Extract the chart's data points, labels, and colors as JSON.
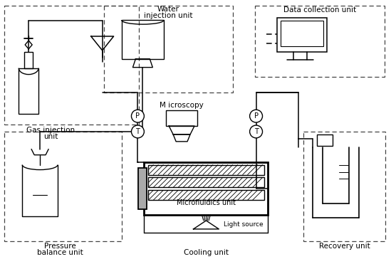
{
  "bg_color": "#ffffff",
  "figsize": [
    5.49,
    3.64
  ],
  "dpi": 100,
  "labels": {
    "gas_injection": "Gas injection\nunit",
    "water_injection": "Water\ninjection unit",
    "data_collection": "Data collection unit",
    "microscopy": "M icroscopy",
    "microfluidics": "Microfluidics unit",
    "pressure_balance": "Pressure\nbalance unit",
    "cooling": "Cooling unit",
    "light_source": "Light source",
    "recovery": "Recovery unit"
  }
}
